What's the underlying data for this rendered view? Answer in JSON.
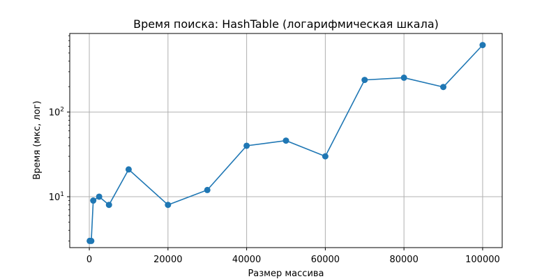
{
  "chart_data": {
    "type": "line",
    "title": "Время поиска: HashTable (логарифмическая шкала)",
    "xlabel": "Размер массива",
    "ylabel": "Время (мкс, лог)",
    "x": [
      100,
      500,
      1000,
      2500,
      5000,
      10000,
      20000,
      30000,
      40000,
      50000,
      60000,
      70000,
      80000,
      90000,
      100000
    ],
    "series": [
      {
        "values": [
          3,
          3,
          9,
          10,
          8,
          21,
          8,
          12,
          40,
          46,
          30,
          240,
          255,
          198,
          620
        ]
      }
    ],
    "xlim": [
      -4975,
      104975
    ],
    "ylim": [
      2.5,
      850
    ],
    "yscale": "log",
    "xticks": [
      0,
      20000,
      40000,
      60000,
      80000,
      100000
    ],
    "yticks": [
      {
        "value": 10,
        "base": "10",
        "exp": "1"
      },
      {
        "value": 100,
        "base": "10",
        "exp": "2"
      }
    ],
    "grid": true,
    "color": "#1f77b4"
  }
}
